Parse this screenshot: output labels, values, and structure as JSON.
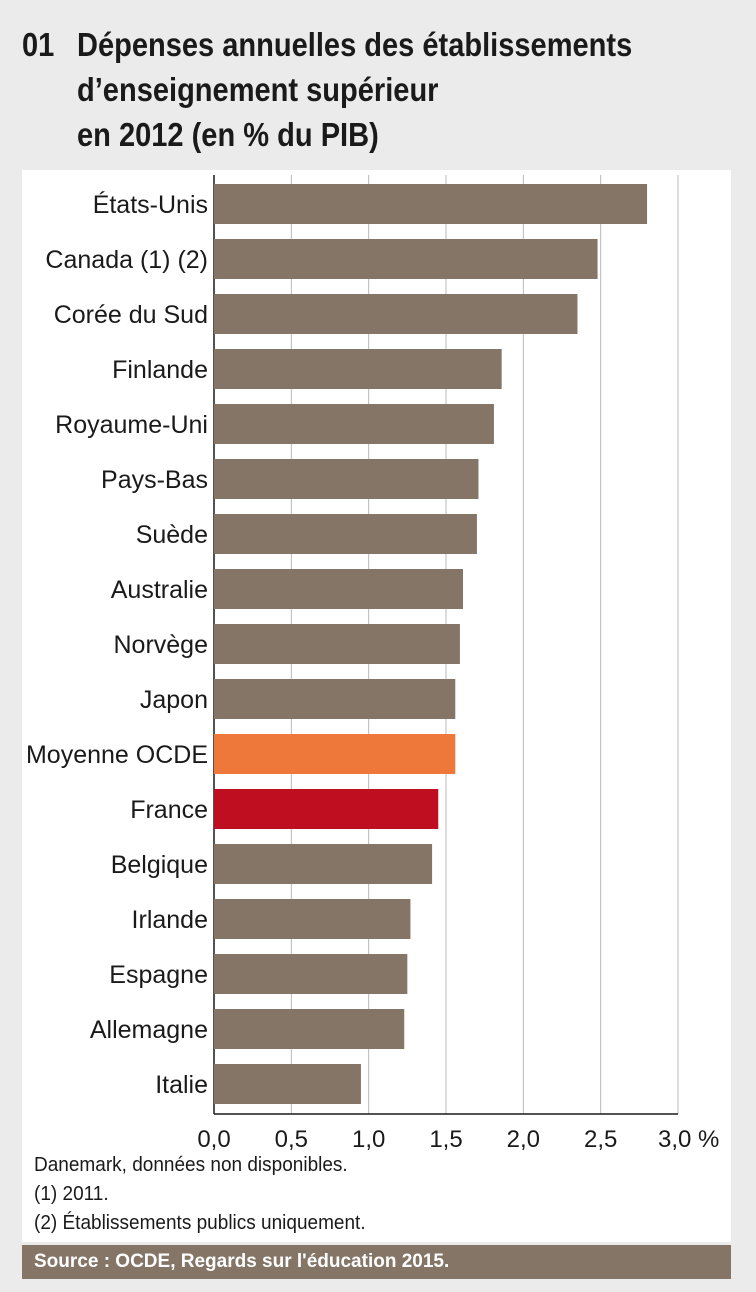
{
  "figure_number": "01",
  "title": "Dépenses annuelles des établissements\nd’enseignement supérieur\nen 2012 (en % du PIB)",
  "footnotes": [
    "Danemark, données non disponibles.",
    "(1) 2011.",
    "(2) Établissements publics uniquement."
  ],
  "source": "Source :  OCDE, Regards sur l'éducation 2015.",
  "colors": {
    "default_bar": "#857566",
    "oecd_average": "#ee773a",
    "france": "#bf0e20",
    "background": "#ebebeb"
  },
  "chart_data": {
    "type": "bar",
    "orientation": "horizontal",
    "title": "Dépenses annuelles des établissements d’enseignement supérieur en 2012 (en % du PIB)",
    "categories": [
      "États-Unis",
      "Canada (1) (2)",
      "Corée du Sud",
      "Finlande",
      "Royaume-Uni",
      "Pays-Bas",
      "Suède",
      "Australie",
      "Norvège",
      "Japon",
      "Moyenne OCDE",
      "France",
      "Belgique",
      "Irlande",
      "Espagne",
      "Allemagne",
      "Italie"
    ],
    "values": [
      2.8,
      2.48,
      2.35,
      1.86,
      1.81,
      1.71,
      1.7,
      1.61,
      1.59,
      1.56,
      1.56,
      1.45,
      1.41,
      1.27,
      1.25,
      1.23,
      0.95
    ],
    "highlight": {
      "Moyenne OCDE": "oecd_average",
      "France": "france"
    },
    "xlim": [
      0,
      3
    ],
    "xticks": [
      0,
      0.5,
      1,
      1.5,
      2,
      2.5,
      3
    ],
    "xtick_labels": [
      "0,0",
      "0,5",
      "1,0",
      "1,5",
      "2,0",
      "2,5",
      "3,0 %"
    ],
    "grid": true,
    "xlabel": "",
    "ylabel": ""
  }
}
